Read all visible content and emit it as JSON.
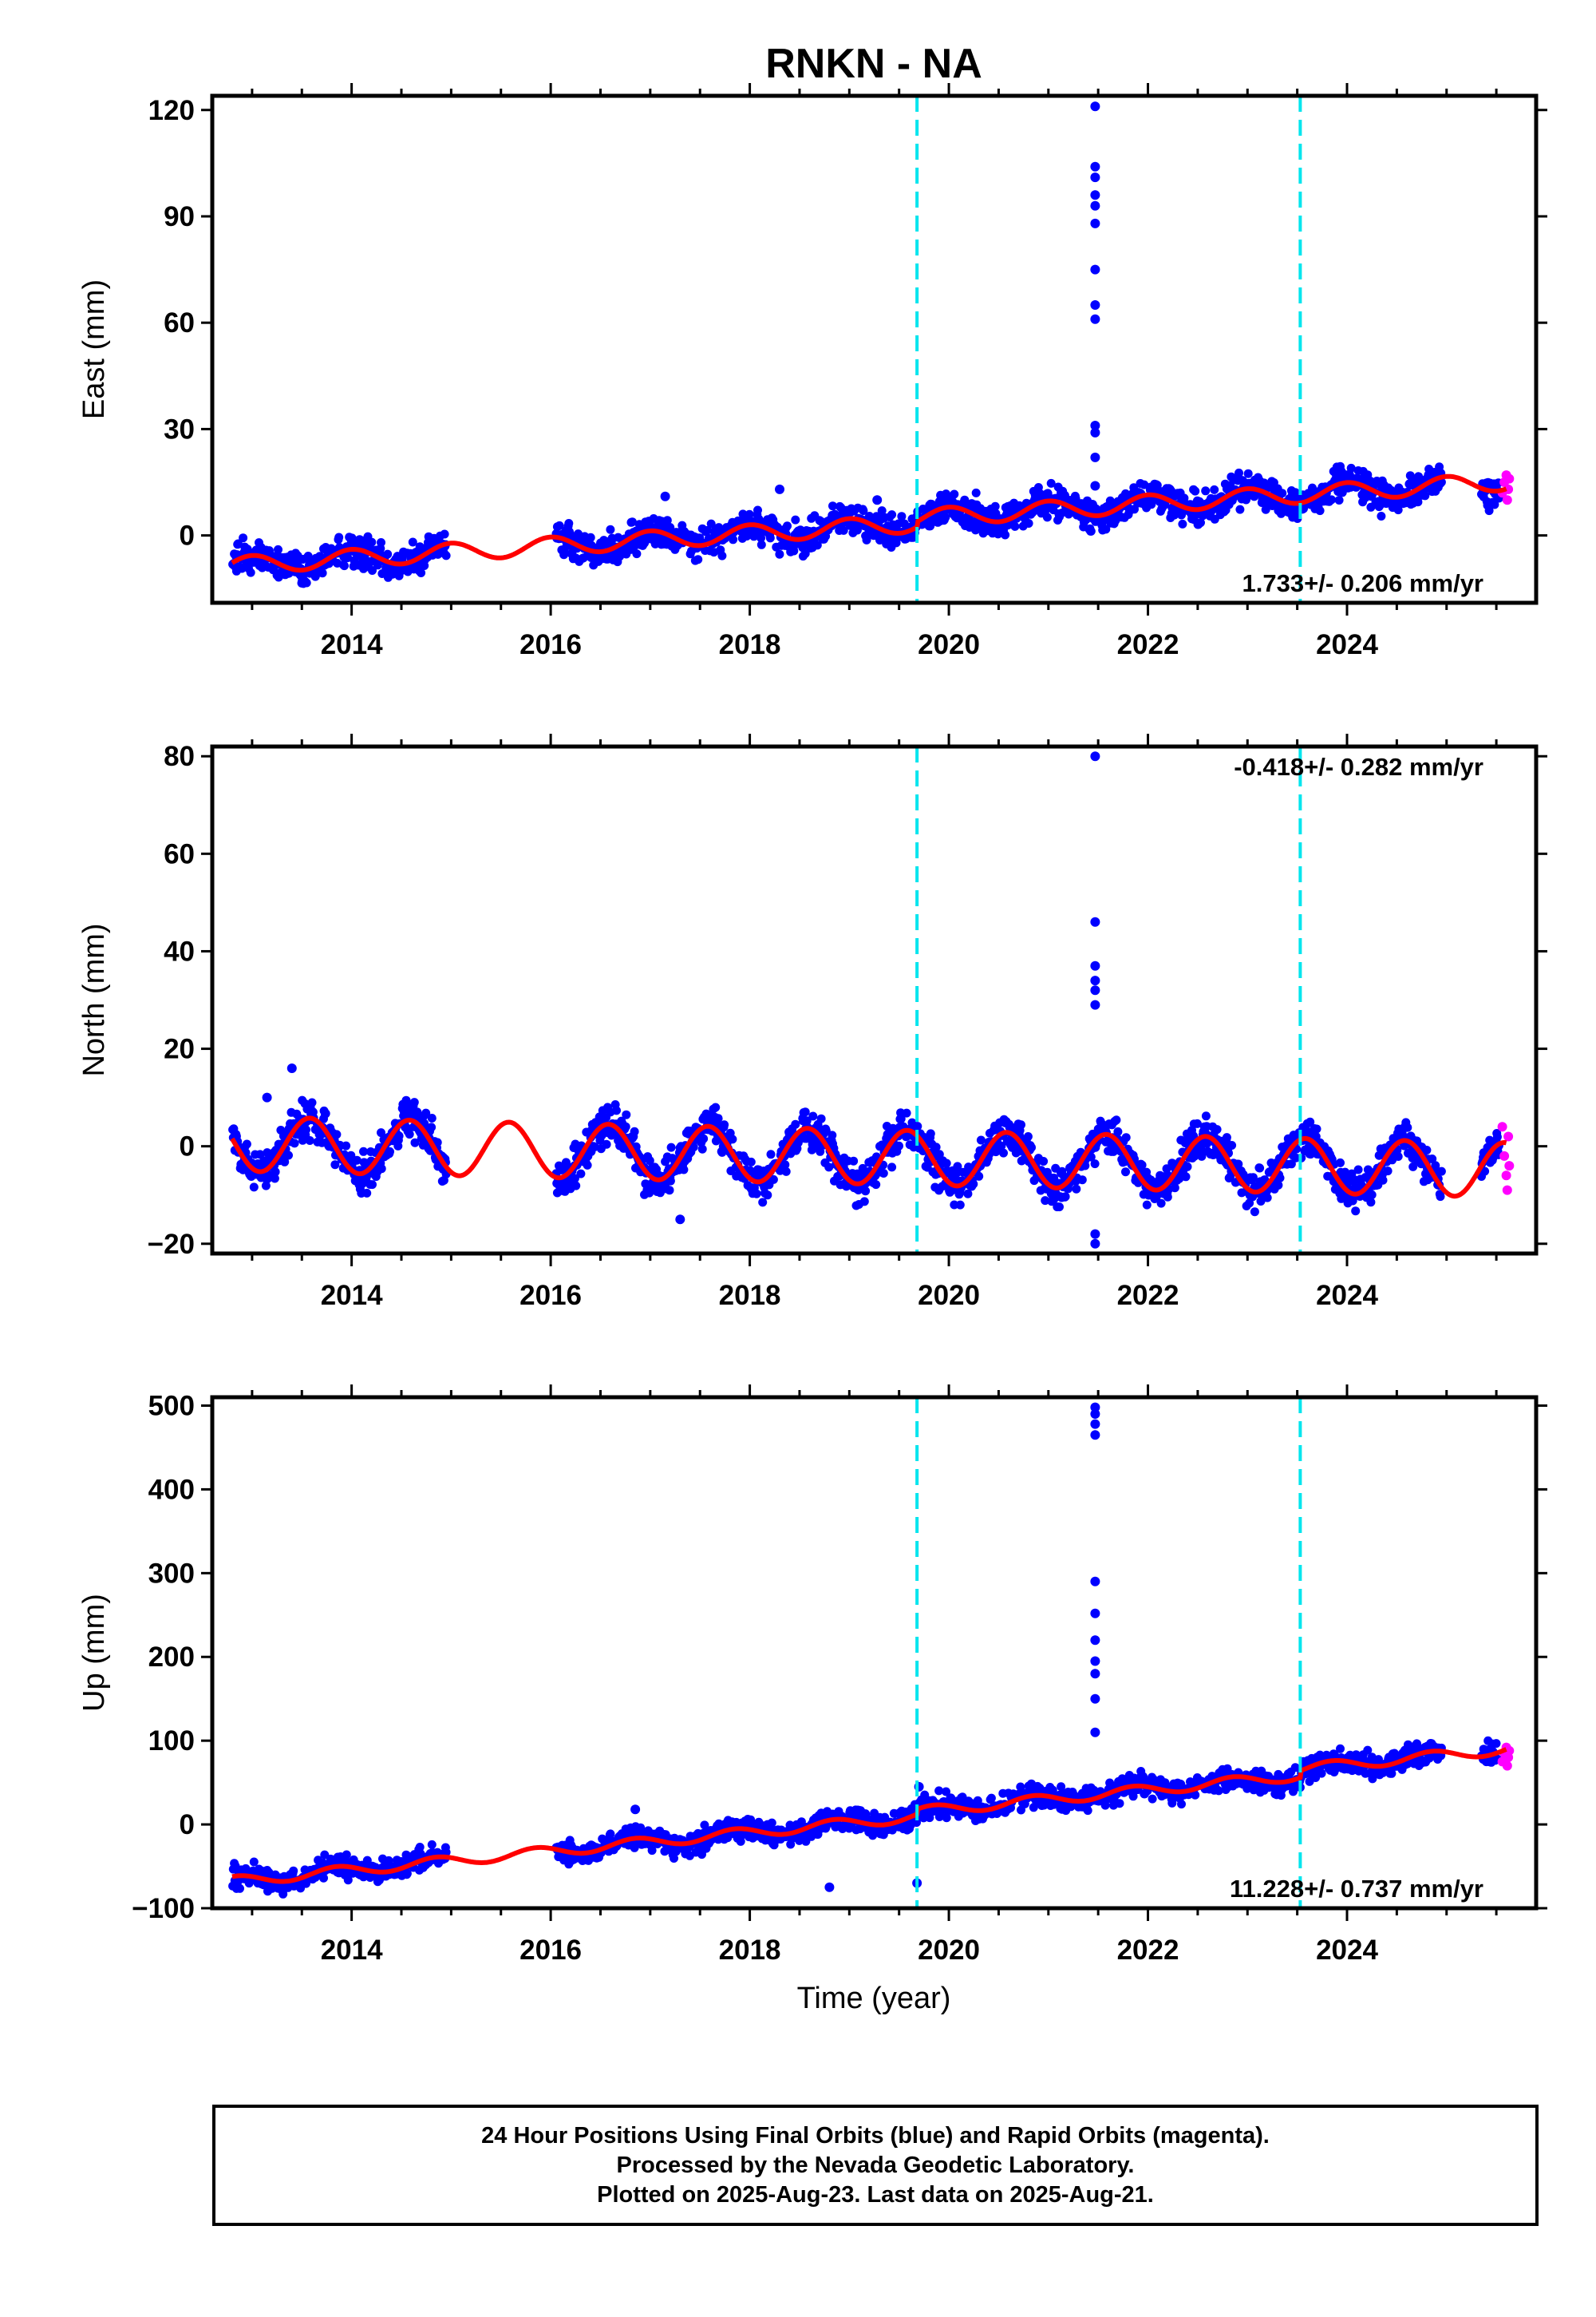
{
  "title": "RNKN - NA",
  "xlabel": "Time (year)",
  "caption": [
    "24 Hour Positions Using Final Orbits (blue) and Rapid Orbits (magenta).",
    "Processed by the Nevada Geodetic Laboratory.",
    "Plotted on 2025-Aug-23. Last data on 2025-Aug-21."
  ],
  "colors": {
    "final": "#0000ff",
    "rapid": "#ff00ff",
    "model": "#ff0000",
    "events": "#00e5ee"
  },
  "chart_data": [
    {
      "type": "scatter",
      "ylabel": "East (mm)",
      "xlim": [
        2012.6,
        2025.9
      ],
      "ylim": [
        -19,
        124
      ],
      "yticks": [
        0,
        30,
        60,
        90,
        120
      ],
      "xticks": [
        2014,
        2016,
        2018,
        2020,
        2022,
        2024
      ],
      "rate": "1.733+/- 0.206 mm/yr",
      "rate_position": "bottom-right",
      "events": [
        2019.68,
        2023.53
      ],
      "trend": {
        "t0": 2012.8,
        "y0": -8.5,
        "rate": 1.733,
        "amp": 2.5,
        "phase": 0.75,
        "jump": [
          [
            2019.68,
            1.5
          ]
        ]
      },
      "gaps": [
        [
          2014.95,
          2016.05
        ],
        [
          2024.95,
          2025.35
        ]
      ],
      "spread": 2.2,
      "outliers": [
        [
          2021.47,
          121
        ],
        [
          2021.47,
          104
        ],
        [
          2021.47,
          101
        ],
        [
          2021.47,
          96
        ],
        [
          2021.47,
          93
        ],
        [
          2021.47,
          88
        ],
        [
          2021.47,
          75
        ],
        [
          2021.47,
          65
        ],
        [
          2021.47,
          61
        ],
        [
          2021.47,
          31
        ],
        [
          2021.47,
          29
        ],
        [
          2021.47,
          22
        ],
        [
          2021.47,
          14
        ],
        [
          2018.3,
          13
        ],
        [
          2017.15,
          11
        ],
        [
          2019.28,
          10
        ]
      ],
      "final_end": 2025.53,
      "rapid_points": [
        [
          2025.56,
          12
        ],
        [
          2025.58,
          15
        ],
        [
          2025.6,
          17
        ],
        [
          2025.61,
          10
        ],
        [
          2025.62,
          13
        ],
        [
          2025.63,
          16
        ]
      ]
    },
    {
      "type": "scatter",
      "ylabel": "North (mm)",
      "xlim": [
        2012.6,
        2025.9
      ],
      "ylim": [
        -22,
        82
      ],
      "yticks": [
        -20,
        0,
        20,
        40,
        60,
        80
      ],
      "xticks": [
        2014,
        2016,
        2018,
        2020,
        2022,
        2024
      ],
      "rate": "-0.418+/- 0.282 mm/yr",
      "rate_position": "top-right",
      "events": [
        2019.68,
        2023.53
      ],
      "trend": {
        "t0": 2012.8,
        "y0": 0.5,
        "rate": -0.418,
        "amp": 5.6,
        "phase": 0.33,
        "jump": []
      },
      "gaps": [
        [
          2014.95,
          2016.05
        ],
        [
          2024.95,
          2025.35
        ]
      ],
      "spread": 2.0,
      "outliers": [
        [
          2021.47,
          80
        ],
        [
          2021.47,
          46
        ],
        [
          2021.47,
          37
        ],
        [
          2021.47,
          34
        ],
        [
          2021.47,
          32
        ],
        [
          2021.47,
          29
        ],
        [
          2013.4,
          16
        ],
        [
          2021.47,
          -18
        ],
        [
          2021.47,
          -20
        ],
        [
          2017.3,
          -15
        ],
        [
          2013.15,
          10
        ]
      ],
      "final_end": 2025.53,
      "rapid_points": [
        [
          2025.56,
          4
        ],
        [
          2025.58,
          -2
        ],
        [
          2025.6,
          -6
        ],
        [
          2025.61,
          -9
        ],
        [
          2025.62,
          2
        ],
        [
          2025.63,
          -4
        ]
      ]
    },
    {
      "type": "scatter",
      "ylabel": "Up (mm)",
      "xlim": [
        2012.6,
        2025.9
      ],
      "ylim": [
        -100,
        510
      ],
      "yticks": [
        -100,
        0,
        100,
        200,
        300,
        400,
        500
      ],
      "xticks": [
        2014,
        2016,
        2018,
        2020,
        2022,
        2024
      ],
      "rate": "11.228+/- 0.737 mm/yr",
      "rate_position": "bottom-right",
      "events": [
        2019.68,
        2023.53
      ],
      "trend": {
        "t0": 2012.8,
        "y0": -68,
        "rate": 11.228,
        "amp": 6,
        "phase": 0.6,
        "jump": [
          [
            2019.68,
            6
          ],
          [
            2023.53,
            8
          ]
        ]
      },
      "gaps": [
        [
          2014.95,
          2016.05
        ],
        [
          2024.95,
          2025.35
        ]
      ],
      "spread": 6.5,
      "outliers": [
        [
          2021.47,
          498
        ],
        [
          2021.47,
          490
        ],
        [
          2021.47,
          478
        ],
        [
          2021.47,
          465
        ],
        [
          2021.47,
          290
        ],
        [
          2021.47,
          252
        ],
        [
          2021.47,
          220
        ],
        [
          2021.47,
          195
        ],
        [
          2021.47,
          180
        ],
        [
          2021.47,
          150
        ],
        [
          2021.47,
          110
        ],
        [
          2018.8,
          -75
        ],
        [
          2019.68,
          -70
        ],
        [
          2016.85,
          18
        ],
        [
          2019.7,
          45
        ]
      ],
      "final_end": 2025.53,
      "rapid_points": [
        [
          2025.56,
          75
        ],
        [
          2025.58,
          85
        ],
        [
          2025.6,
          92
        ],
        [
          2025.61,
          70
        ],
        [
          2025.62,
          80
        ],
        [
          2025.63,
          88
        ]
      ]
    }
  ]
}
